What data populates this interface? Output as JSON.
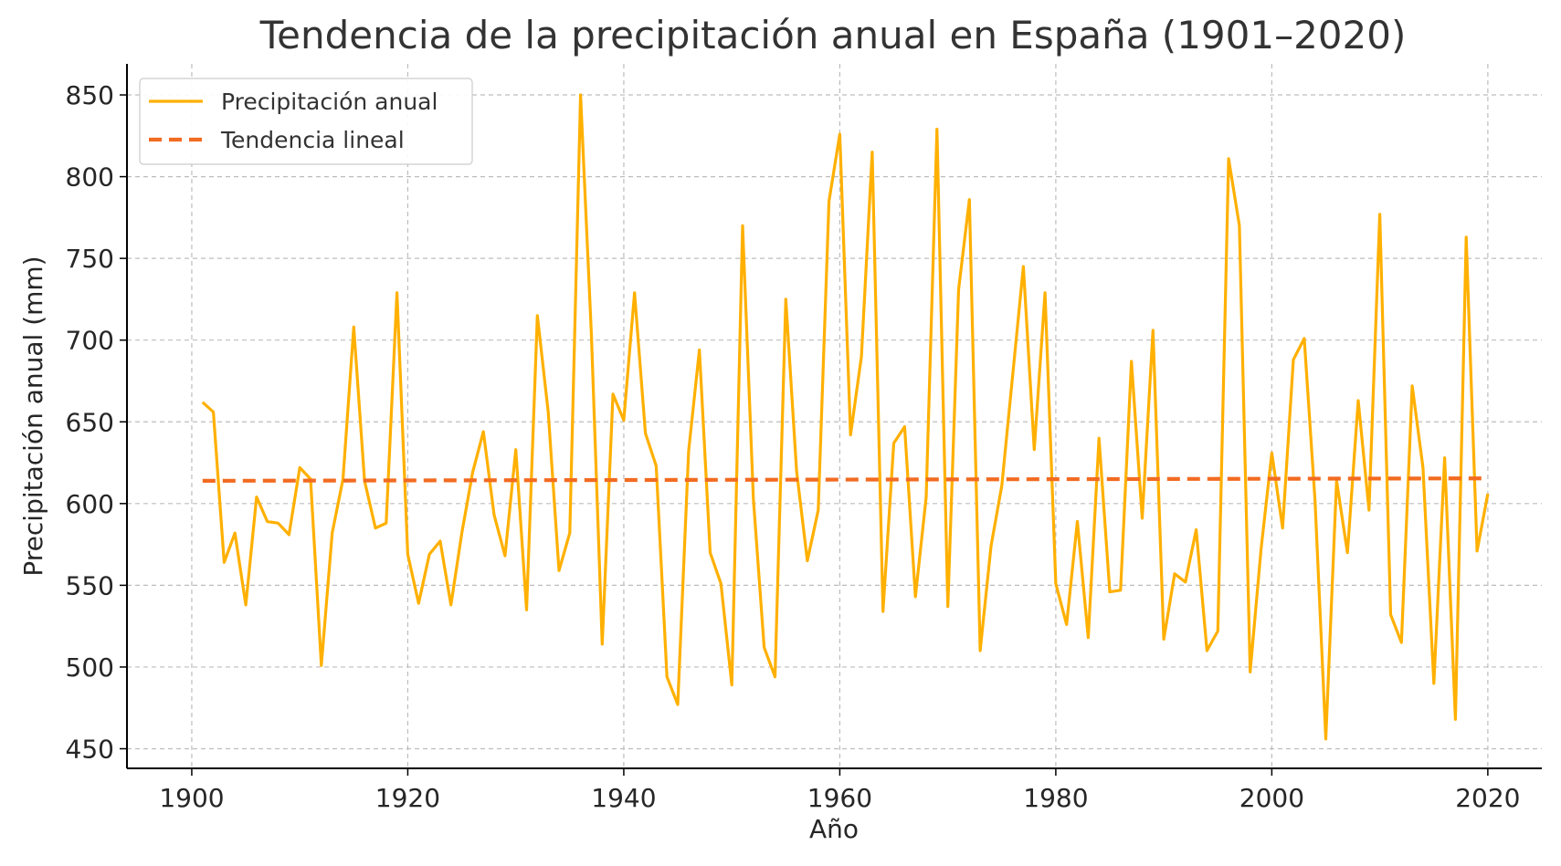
{
  "chart_data": {
    "type": "line",
    "title": "Tendencia de la precipitación anual en España (1901–2020)",
    "xlabel": "Año",
    "ylabel": "Precipitación anual (mm)",
    "xlim": [
      1894,
      2025
    ],
    "ylim": [
      438,
      869
    ],
    "xticks": [
      1900,
      1920,
      1940,
      1960,
      1980,
      2000,
      2020
    ],
    "yticks": [
      450,
      500,
      550,
      600,
      650,
      700,
      750,
      800,
      850
    ],
    "grid": true,
    "legend_position": "top-left",
    "colors": {
      "series": "#FFB000",
      "trend": "#F26B21"
    },
    "series": [
      {
        "name": "Precipitación anual",
        "style": "solid",
        "x": [
          1901,
          1902,
          1903,
          1904,
          1905,
          1906,
          1907,
          1908,
          1909,
          1910,
          1911,
          1912,
          1913,
          1914,
          1915,
          1916,
          1917,
          1918,
          1919,
          1920,
          1921,
          1922,
          1923,
          1924,
          1925,
          1926,
          1927,
          1928,
          1929,
          1930,
          1931,
          1932,
          1933,
          1934,
          1935,
          1936,
          1937,
          1938,
          1939,
          1940,
          1941,
          1942,
          1943,
          1944,
          1945,
          1946,
          1947,
          1948,
          1949,
          1950,
          1951,
          1952,
          1953,
          1954,
          1955,
          1956,
          1957,
          1958,
          1959,
          1960,
          1961,
          1962,
          1963,
          1964,
          1965,
          1966,
          1967,
          1968,
          1969,
          1970,
          1971,
          1972,
          1973,
          1974,
          1975,
          1976,
          1977,
          1978,
          1979,
          1980,
          1981,
          1982,
          1983,
          1984,
          1985,
          1986,
          1987,
          1988,
          1989,
          1990,
          1991,
          1992,
          1993,
          1994,
          1995,
          1996,
          1997,
          1998,
          1999,
          2000,
          2001,
          2002,
          2003,
          2004,
          2005,
          2006,
          2007,
          2008,
          2009,
          2010,
          2011,
          2012,
          2013,
          2014,
          2015,
          2016,
          2017,
          2018,
          2019,
          2020
        ],
        "values": [
          662,
          656,
          564,
          582,
          538,
          604,
          589,
          588,
          581,
          622,
          615,
          501,
          582,
          615,
          708,
          614,
          585,
          588,
          729,
          569,
          539,
          569,
          577,
          538,
          582,
          619,
          644,
          593,
          568,
          633,
          535,
          715,
          656,
          559,
          582,
          850,
          703,
          514,
          667,
          651,
          729,
          643,
          623,
          494,
          477,
          632,
          694,
          570,
          551,
          489,
          770,
          603,
          512,
          494,
          725,
          620,
          565,
          596,
          785,
          826,
          642,
          690,
          815,
          534,
          637,
          647,
          543,
          604,
          829,
          537,
          731,
          786,
          510,
          574,
          611,
          678,
          745,
          633,
          729,
          551,
          526,
          589,
          518,
          640,
          546,
          547,
          687,
          591,
          706,
          517,
          557,
          552,
          584,
          510,
          522,
          811,
          770,
          497,
          572,
          631,
          585,
          688,
          701,
          602,
          456,
          614,
          570,
          663,
          596,
          777,
          532,
          515,
          672,
          622,
          490,
          628,
          468,
          763,
          571,
          606
        ]
      },
      {
        "name": "Tendencia lineal",
        "style": "dashed",
        "x": [
          1901,
          2020
        ],
        "values": [
          613.9,
          615.4
        ]
      }
    ]
  }
}
